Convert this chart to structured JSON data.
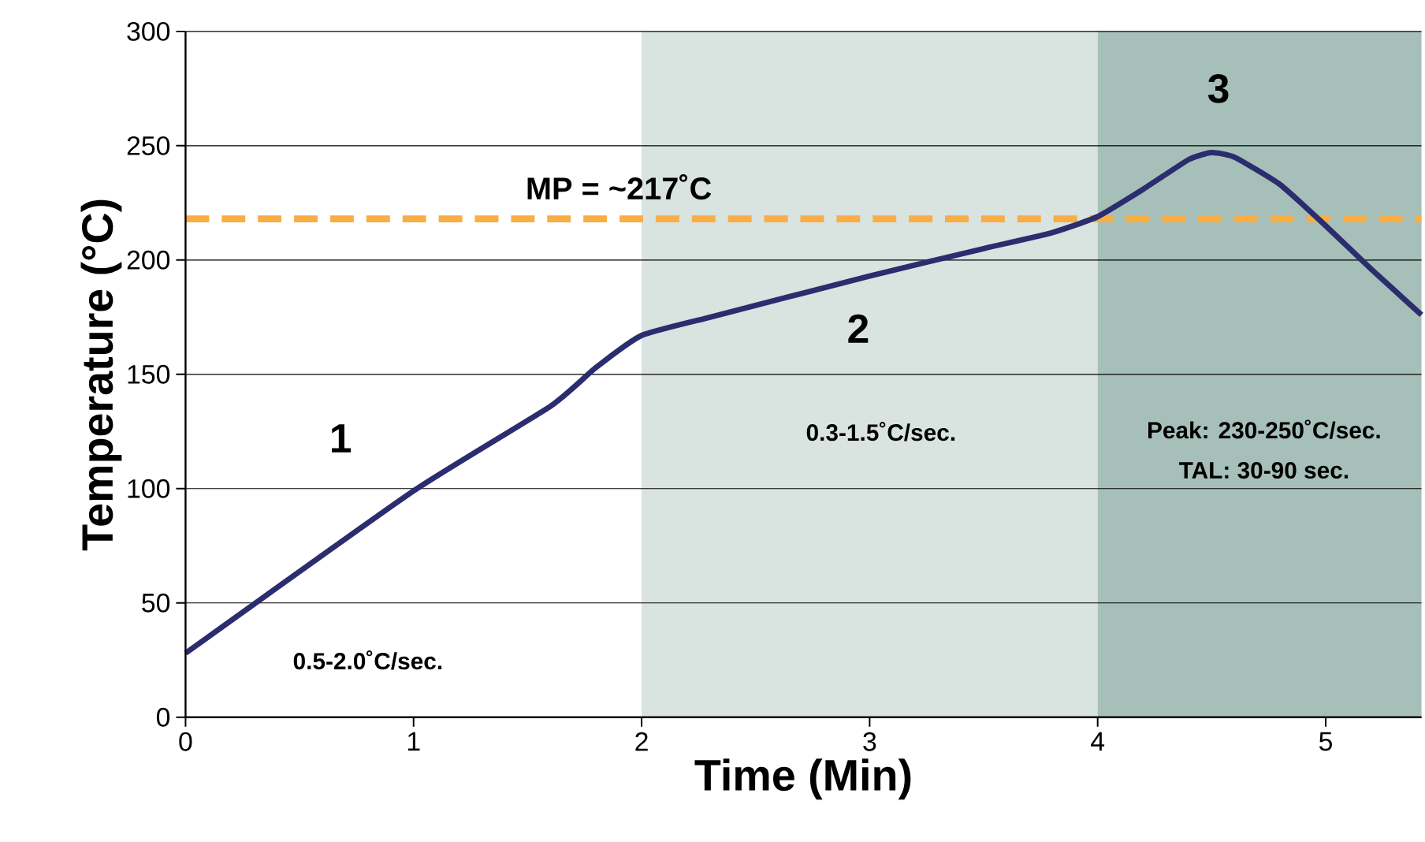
{
  "chart_data": {
    "type": "line",
    "xlabel": "Time (Min)",
    "ylabel": "Temperature (°C)",
    "x": [
      0,
      1,
      1.6,
      1.8,
      2.0,
      2.3,
      3.0,
      3.5,
      3.8,
      4.0,
      4.2,
      4.4,
      4.5,
      4.6,
      4.8,
      5.0,
      5.2,
      5.42
    ],
    "series": [
      {
        "color": "#2b2d6e",
        "values": [
          28,
          99,
          136,
          153,
          167,
          175,
          193,
          205,
          212,
          219,
          231,
          244,
          247,
          245,
          233,
          215,
          196,
          176
        ]
      }
    ],
    "xlim": [
      0,
      5.42
    ],
    "xticks": [
      0,
      1,
      2,
      3,
      4,
      5
    ],
    "ylim": [
      0,
      300
    ],
    "yticks": [
      0,
      50,
      100,
      150,
      200,
      250,
      300
    ],
    "grid": "y",
    "line_style": "solid",
    "marker": "none",
    "ref_lines": [
      {
        "axis": "y",
        "value": 218,
        "label": "MP = ~217˚C",
        "color": "#f9ad42",
        "line_style": "dashed"
      }
    ],
    "bands": [
      {
        "axis": "x",
        "from": 2,
        "to": 4,
        "color": "#d9e3e0"
      },
      {
        "axis": "x",
        "from": 4,
        "to": 5.42,
        "color": "#a6bfb9"
      }
    ],
    "annotations": [
      "1",
      "0.5-2.0˚C/sec.",
      "2",
      "0.3-1.5˚C/sec.",
      "3",
      "Peak: 230-250˚C/sec.",
      "TAL: 30-90 sec."
    ]
  }
}
